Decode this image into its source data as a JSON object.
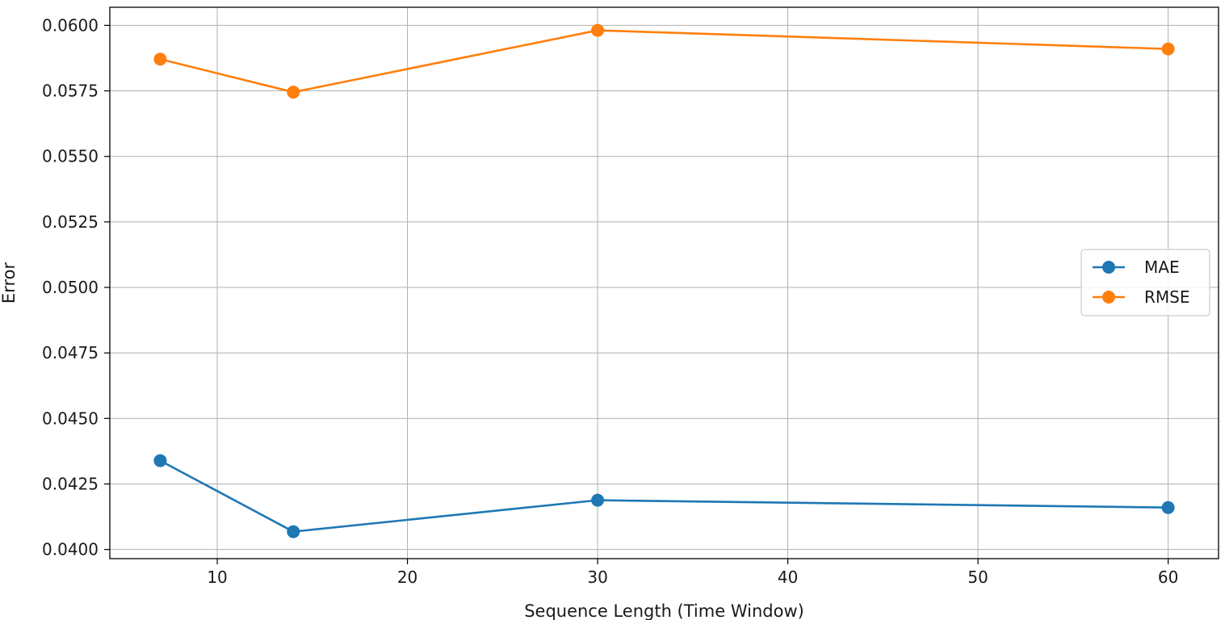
{
  "chart_data": {
    "type": "line",
    "title": "",
    "xlabel": "Sequence Length (Time Window)",
    "ylabel": "Error",
    "x": [
      7,
      14,
      30,
      60
    ],
    "series": [
      {
        "name": "MAE",
        "color": "#1f77b4",
        "values": [
          0.04339,
          0.04068,
          0.04188,
          0.0416
        ]
      },
      {
        "name": "RMSE",
        "color": "#ff7f0e",
        "values": [
          0.05871,
          0.05745,
          0.05981,
          0.0591
        ]
      }
    ],
    "xlim": [
      4.35,
      62.65
    ],
    "ylim": [
      0.03965,
      0.06069
    ],
    "xticks": [
      10,
      20,
      30,
      40,
      50,
      60
    ],
    "xtick_labels": [
      "10",
      "20",
      "30",
      "40",
      "50",
      "60"
    ],
    "yticks": [
      0.04,
      0.0425,
      0.045,
      0.0475,
      0.05,
      0.0525,
      0.055,
      0.0575,
      0.06
    ],
    "ytick_labels": [
      "0.0400",
      "0.0425",
      "0.0450",
      "0.0475",
      "0.0500",
      "0.0525",
      "0.0550",
      "0.0575",
      "0.0600"
    ],
    "grid": true,
    "legend": "center-right",
    "marker": "circle"
  }
}
